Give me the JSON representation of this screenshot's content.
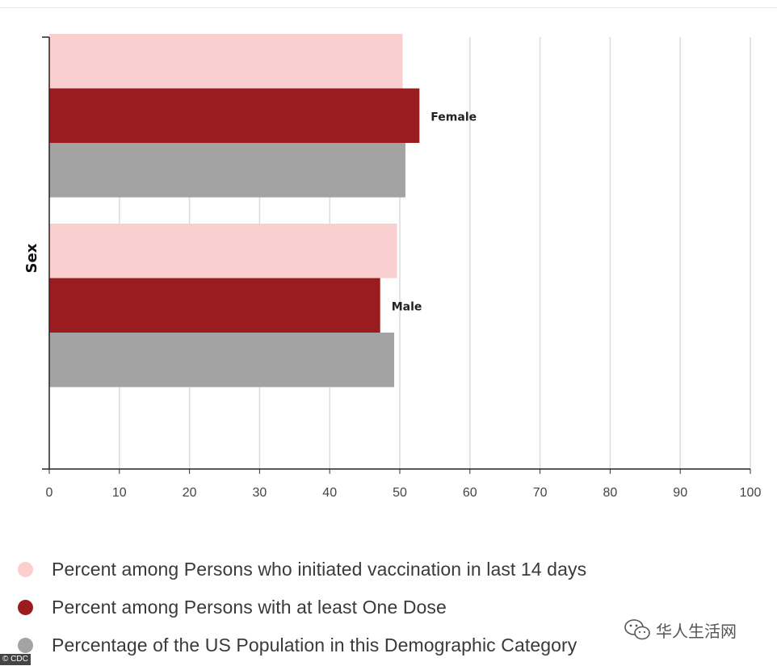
{
  "chart_data": {
    "type": "bar",
    "orientation": "horizontal",
    "ylabel": "Sex",
    "categories": [
      "Female",
      "Male"
    ],
    "xlim": [
      0,
      100
    ],
    "xticks": [
      0,
      10,
      20,
      30,
      40,
      50,
      60,
      70,
      80,
      90,
      100
    ],
    "grid": true,
    "legend_position": "bottom",
    "series": [
      {
        "name": "Percent among Persons who initiated vaccination in last 14 days",
        "color": "#f9cfcf",
        "values": [
          50.4,
          49.6
        ]
      },
      {
        "name": "Percent among Persons with at least One Dose",
        "color": "#9b1c1f",
        "values": [
          52.8,
          47.2
        ]
      },
      {
        "name": "Percentage of the US Population in this Demographic Category",
        "color": "#a3a3a3",
        "values": [
          50.8,
          49.2
        ]
      }
    ]
  },
  "credit": "© CDC",
  "watermark": {
    "text": "华人生活网",
    "icon": "wechat-icon"
  }
}
